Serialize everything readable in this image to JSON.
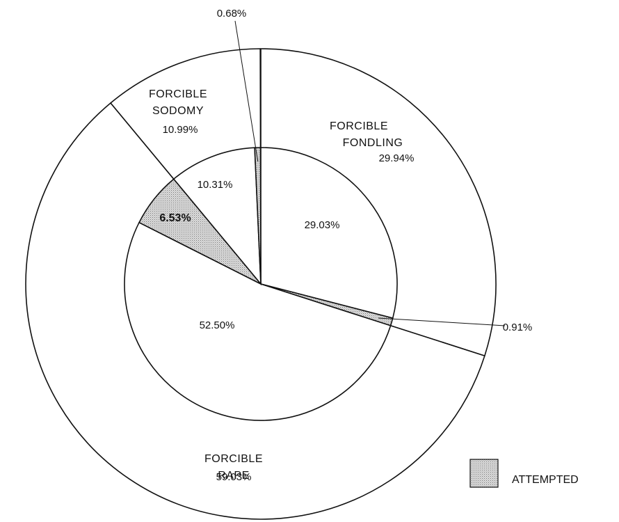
{
  "chart_data": {
    "type": "pie",
    "title": "",
    "legend": {
      "position": "bottom-right",
      "label": "ATTEMPTED",
      "pattern": "stippled-gray"
    },
    "outer_ring": [
      {
        "category": "FORCIBLE FONDLING",
        "percent_text": "29.94%",
        "value": 29.94
      },
      {
        "category": "FORCIBLE RAPE",
        "percent_text": "59.03%",
        "value": 59.03
      },
      {
        "category": "FORCIBLE SODOMY",
        "percent_text": "10.99%",
        "value": 10.99
      }
    ],
    "inner_pie": [
      {
        "group": "FORCIBLE FONDLING",
        "status": "completed",
        "percent_text": "29.03%",
        "value": 29.03
      },
      {
        "group": "FORCIBLE FONDLING",
        "status": "attempted",
        "percent_text": "0.91%",
        "value": 0.91
      },
      {
        "group": "FORCIBLE RAPE",
        "status": "completed",
        "percent_text": "52.50%",
        "value": 52.5
      },
      {
        "group": "FORCIBLE RAPE",
        "status": "attempted",
        "percent_text": "6.53%",
        "value": 6.53
      },
      {
        "group": "FORCIBLE SODOMY",
        "status": "completed",
        "percent_text": "10.31%",
        "value": 10.31
      },
      {
        "group": "FORCIBLE SODOMY",
        "status": "attempted",
        "percent_text": "0.68%",
        "value": 0.68
      }
    ],
    "colors": {
      "line": "#111111",
      "fill": "#ffffff",
      "attempted": "#c9c9c9"
    }
  }
}
